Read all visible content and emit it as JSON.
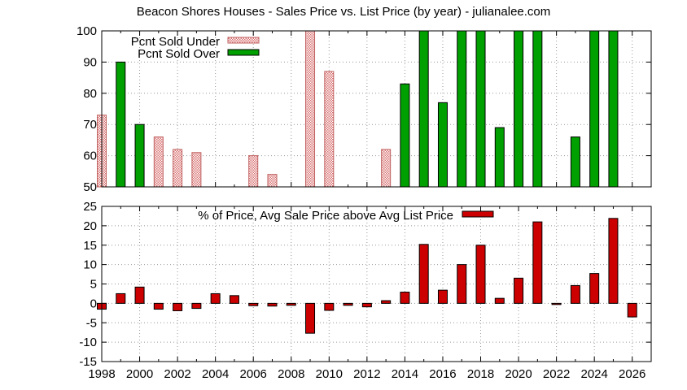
{
  "title": "Beacon Shores Houses - Sales Price vs. List Price (by year) - julianalee.com",
  "colors": {
    "under": "#f0b0b0",
    "under_stroke": "#c06060",
    "over": "#00a000",
    "avg": "#cc0000",
    "grid": "#999999"
  },
  "chart_data": [
    {
      "type": "bar",
      "ylim": [
        50,
        100
      ],
      "yticks": [
        "50",
        "60",
        "70",
        "80",
        "90",
        "100"
      ],
      "legend_position": "top-left",
      "grid": true,
      "series": [
        {
          "name": "Pcnt Sold Under",
          "points": [
            {
              "x": 1998,
              "y": 73
            },
            {
              "x": 2001,
              "y": 66
            },
            {
              "x": 2002,
              "y": 62
            },
            {
              "x": 2003,
              "y": 61
            },
            {
              "x": 2006,
              "y": 60
            },
            {
              "x": 2007,
              "y": 54
            },
            {
              "x": 2009,
              "y": 100
            },
            {
              "x": 2010,
              "y": 87
            },
            {
              "x": 2013,
              "y": 62
            }
          ]
        },
        {
          "name": "Pcnt Sold Over",
          "points": [
            {
              "x": 1999,
              "y": 90
            },
            {
              "x": 2000,
              "y": 70
            },
            {
              "x": 2014,
              "y": 83
            },
            {
              "x": 2015,
              "y": 100
            },
            {
              "x": 2016,
              "y": 77
            },
            {
              "x": 2017,
              "y": 100
            },
            {
              "x": 2018,
              "y": 100
            },
            {
              "x": 2019,
              "y": 69
            },
            {
              "x": 2020,
              "y": 100
            },
            {
              "x": 2021,
              "y": 100
            },
            {
              "x": 2023,
              "y": 66
            },
            {
              "x": 2024,
              "y": 100
            },
            {
              "x": 2025,
              "y": 100
            }
          ]
        }
      ]
    },
    {
      "type": "bar",
      "ylim": [
        -15,
        25
      ],
      "yticks": [
        "-15",
        "-10",
        "-5",
        "0",
        "5",
        "10",
        "15",
        "20",
        "25"
      ],
      "legend_position": "top-center",
      "grid": true,
      "xlim": [
        1998,
        2027
      ],
      "xticks": [
        "1998",
        "2000",
        "2002",
        "2004",
        "2006",
        "2008",
        "2010",
        "2012",
        "2014",
        "2016",
        "2018",
        "2020",
        "2022",
        "2024",
        "2026"
      ],
      "series": [
        {
          "name": "% of Price, Avg Sale Price above Avg List Price",
          "points": [
            {
              "x": 1998,
              "y": -1.5
            },
            {
              "x": 1999,
              "y": 2.5
            },
            {
              "x": 2000,
              "y": 4.2
            },
            {
              "x": 2001,
              "y": -1.5
            },
            {
              "x": 2002,
              "y": -1.9
            },
            {
              "x": 2003,
              "y": -1.3
            },
            {
              "x": 2004,
              "y": 2.5
            },
            {
              "x": 2005,
              "y": 2.0
            },
            {
              "x": 2006,
              "y": -0.6
            },
            {
              "x": 2007,
              "y": -0.7
            },
            {
              "x": 2008,
              "y": -0.5
            },
            {
              "x": 2009,
              "y": -7.7
            },
            {
              "x": 2010,
              "y": -1.8
            },
            {
              "x": 2011,
              "y": -0.5
            },
            {
              "x": 2012,
              "y": -0.9
            },
            {
              "x": 2013,
              "y": 0.7
            },
            {
              "x": 2014,
              "y": 2.9
            },
            {
              "x": 2015,
              "y": 15.2
            },
            {
              "x": 2016,
              "y": 3.4
            },
            {
              "x": 2017,
              "y": 10.0
            },
            {
              "x": 2018,
              "y": 15.0
            },
            {
              "x": 2019,
              "y": 1.3
            },
            {
              "x": 2020,
              "y": 6.5
            },
            {
              "x": 2021,
              "y": 21.0
            },
            {
              "x": 2022,
              "y": -0.3
            },
            {
              "x": 2023,
              "y": 4.6
            },
            {
              "x": 2024,
              "y": 7.7
            },
            {
              "x": 2025,
              "y": 21.9
            },
            {
              "x": 2026,
              "y": -3.5
            }
          ]
        }
      ]
    }
  ]
}
